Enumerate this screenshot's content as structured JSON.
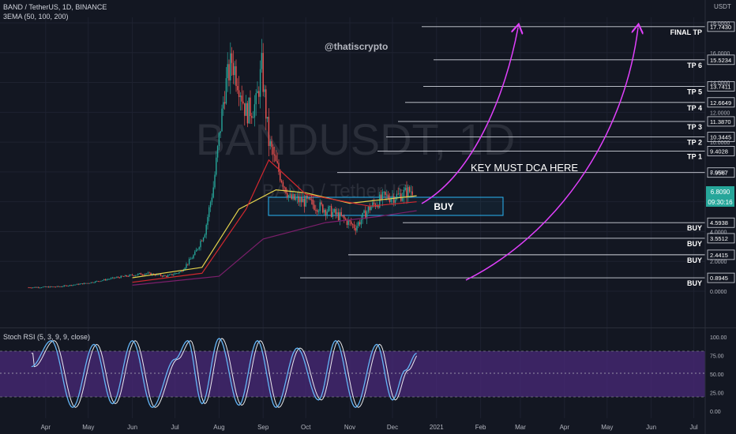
{
  "header": {
    "title": "BAND / TetherUS, 1D, BINANCE",
    "ema_label": "3EMA (50, 100, 200)",
    "stoch_label": "Stoch RSI (5, 3, 9, 9, close)",
    "currency": "USDT",
    "handle": "@thatiscrypto"
  },
  "watermark": {
    "symbol": "BANDUSDT, 1D",
    "pair": "BAND / TetherUS"
  },
  "annotation": {
    "dca_text": "KEY MUST DCA HERE",
    "buy_box_text": "BUY"
  },
  "colors": {
    "background": "#131722",
    "up_candle": "#26a69a",
    "down_candle": "#ef5350",
    "ema50": "#e6d44d",
    "ema100": "#d3282f",
    "ema200": "#7b1f6b",
    "arrow": "#e040fb",
    "buy_box": "#29b6f6",
    "stoch_k": "#64b5f6",
    "stoch_d": "#ffffff",
    "stoch_band": "#4a2a79"
  },
  "chart_data": [
    {
      "type": "candlestick",
      "title": "BAND / TetherUS, 1D, BINANCE",
      "x_tick_labels": [
        "Apr",
        "May",
        "Jun",
        "Jul",
        "Aug",
        "Sep",
        "Oct",
        "Nov",
        "Dec",
        "2021",
        "Feb",
        "Mar",
        "Apr",
        "May",
        "Jun",
        "Jul"
      ],
      "y_tick_labels": [
        "18.0000",
        "16.0000",
        "14.0000",
        "12.0000",
        "10.0000",
        "8.0000",
        "6.0000",
        "4.0000",
        "2.0000",
        "0.0000"
      ],
      "ylim": [
        0,
        18.5
      ],
      "last_price": "6.8090",
      "countdown": "09:30:16",
      "price_path": [
        {
          "date": "2020-03-20",
          "close": 0.25
        },
        {
          "date": "2020-04-10",
          "close": 0.3
        },
        {
          "date": "2020-05-01",
          "close": 0.55
        },
        {
          "date": "2020-05-20",
          "close": 0.9
        },
        {
          "date": "2020-06-10",
          "close": 1.2
        },
        {
          "date": "2020-06-25",
          "close": 1.0
        },
        {
          "date": "2020-07-05",
          "close": 1.3
        },
        {
          "date": "2020-07-15",
          "close": 2.5
        },
        {
          "date": "2020-07-22",
          "close": 4.0
        },
        {
          "date": "2020-07-28",
          "close": 7.0
        },
        {
          "date": "2020-08-05",
          "close": 13.5
        },
        {
          "date": "2020-08-10",
          "close": 15.5
        },
        {
          "date": "2020-08-15",
          "close": 14.0
        },
        {
          "date": "2020-08-20",
          "close": 12.0
        },
        {
          "date": "2020-08-27",
          "close": 12.5
        },
        {
          "date": "2020-08-31",
          "close": 15.0
        },
        {
          "date": "2020-09-05",
          "close": 10.0
        },
        {
          "date": "2020-09-10",
          "close": 8.5
        },
        {
          "date": "2020-09-20",
          "close": 6.2
        },
        {
          "date": "2020-10-01",
          "close": 6.0
        },
        {
          "date": "2020-10-15",
          "close": 5.5
        },
        {
          "date": "2020-10-25",
          "close": 5.0
        },
        {
          "date": "2020-11-05",
          "close": 4.3
        },
        {
          "date": "2020-11-15",
          "close": 5.6
        },
        {
          "date": "2020-11-25",
          "close": 6.3
        },
        {
          "date": "2020-12-05",
          "close": 6.4
        },
        {
          "date": "2020-12-15",
          "close": 6.8
        }
      ],
      "series": [
        {
          "name": "EMA 50",
          "values": [
            {
              "date": "2020-06-01",
              "value": 0.9
            },
            {
              "date": "2020-07-20",
              "value": 1.6
            },
            {
              "date": "2020-08-15",
              "value": 5.5
            },
            {
              "date": "2020-09-10",
              "value": 6.8
            },
            {
              "date": "2020-10-01",
              "value": 6.6
            },
            {
              "date": "2020-11-01",
              "value": 5.9
            },
            {
              "date": "2020-12-18",
              "value": 6.4
            }
          ]
        },
        {
          "name": "EMA 100",
          "values": [
            {
              "date": "2020-06-01",
              "value": 0.6
            },
            {
              "date": "2020-07-20",
              "value": 1.2
            },
            {
              "date": "2020-08-20",
              "value": 5.5
            },
            {
              "date": "2020-09-05",
              "value": 8.8
            },
            {
              "date": "2020-10-01",
              "value": 6.5
            },
            {
              "date": "2020-11-15",
              "value": 5.7
            },
            {
              "date": "2020-12-18",
              "value": 6.0
            }
          ]
        },
        {
          "name": "EMA 200",
          "values": [
            {
              "date": "2020-06-01",
              "value": 0.4
            },
            {
              "date": "2020-08-01",
              "value": 1.0
            },
            {
              "date": "2020-09-01",
              "value": 3.5
            },
            {
              "date": "2020-10-15",
              "value": 4.6
            },
            {
              "date": "2020-11-20",
              "value": 5.0
            },
            {
              "date": "2020-12-18",
              "value": 5.4
            }
          ]
        }
      ],
      "levels": [
        {
          "price": "17.7430",
          "label": "FINAL TP"
        },
        {
          "price": "15.5234",
          "label": "TP 6"
        },
        {
          "price": "13.7411",
          "label": "TP 5"
        },
        {
          "price": "12.6649",
          "label": "TP 4"
        },
        {
          "price": "11.3870",
          "label": "TP 3"
        },
        {
          "price": "10.3445",
          "label": "TP 2"
        },
        {
          "price": "9.4028",
          "label": "TP 1"
        },
        {
          "price": "7.9567",
          "label": ""
        },
        {
          "price": "4.5938",
          "label": "BUY"
        },
        {
          "price": "3.5512",
          "label": "BUY"
        },
        {
          "price": "2.4415",
          "label": "BUY"
        },
        {
          "price": "0.8945",
          "label": "BUY"
        }
      ],
      "buy_zone": {
        "from": 5.1,
        "to": 6.4
      }
    },
    {
      "type": "line",
      "title": "Stoch RSI (5, 3, 9, 9, close)",
      "y_tick_labels": [
        "100.00",
        "75.00",
        "50.00",
        "25.00",
        "0.00"
      ],
      "ylim": [
        0,
        100
      ],
      "band": [
        20,
        80
      ],
      "series": [
        {
          "name": "K",
          "values": [
            {
              "date": "2020-03-22",
              "value": 60
            },
            {
              "date": "2020-04-05",
              "value": 95
            },
            {
              "date": "2020-04-20",
              "value": 5
            },
            {
              "date": "2020-05-05",
              "value": 90
            },
            {
              "date": "2020-05-18",
              "value": 10
            },
            {
              "date": "2020-06-01",
              "value": 95
            },
            {
              "date": "2020-06-15",
              "value": 5
            },
            {
              "date": "2020-07-01",
              "value": 70
            },
            {
              "date": "2020-07-10",
              "value": 95
            },
            {
              "date": "2020-07-20",
              "value": 10
            },
            {
              "date": "2020-08-01",
              "value": 98
            },
            {
              "date": "2020-08-15",
              "value": 8
            },
            {
              "date": "2020-08-28",
              "value": 95
            },
            {
              "date": "2020-09-10",
              "value": 5
            },
            {
              "date": "2020-09-25",
              "value": 85
            },
            {
              "date": "2020-10-10",
              "value": 15
            },
            {
              "date": "2020-10-22",
              "value": 95
            },
            {
              "date": "2020-11-05",
              "value": 5
            },
            {
              "date": "2020-11-20",
              "value": 90
            },
            {
              "date": "2020-12-01",
              "value": 15
            },
            {
              "date": "2020-12-10",
              "value": 55
            },
            {
              "date": "2020-12-18",
              "value": 78
            }
          ]
        }
      ]
    }
  ]
}
